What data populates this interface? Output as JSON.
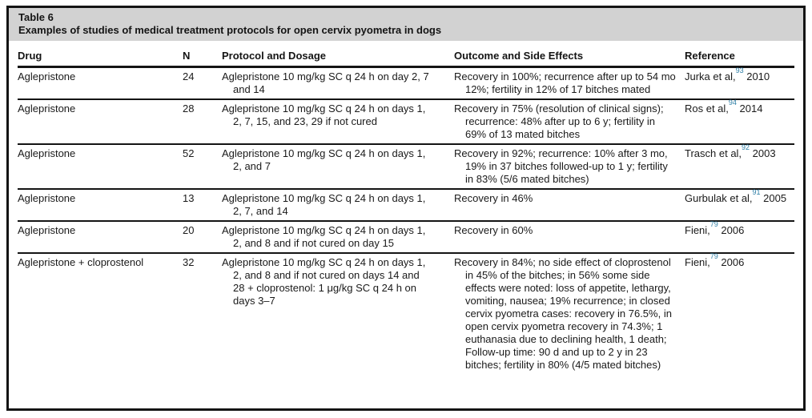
{
  "table": {
    "title_label": "Table 6",
    "title": "Examples of studies of medical treatment protocols for open cervix pyometra in dogs",
    "columns": {
      "drug": "Drug",
      "n": "N",
      "protocol": "Protocol and Dosage",
      "outcome": "Outcome and Side Effects",
      "reference": "Reference"
    },
    "rows": [
      {
        "drug": "Aglepristone",
        "n": "24",
        "protocol": "Aglepristone 10 mg/kg SC q 24 h on day 2, 7 and 14",
        "outcome": "Recovery in 100%; recurrence after up to 54 mo 12%; fertility in 12% of 17 bitches mated",
        "reference": {
          "pre": "Jurka et al,",
          "sup": "93",
          "post": " 2010"
        }
      },
      {
        "drug": "Aglepristone",
        "n": "28",
        "protocol": "Aglepristone 10 mg/kg SC q 24 h on days 1, 2, 7, 15, and 23, 29 if not cured",
        "outcome": "Recovery in 75% (resolution of clinical signs); recurrence: 48% after up to 6 y; fertility in 69% of 13 mated bitches",
        "reference": {
          "pre": "Ros et al,",
          "sup": "94",
          "post": " 2014"
        }
      },
      {
        "drug": "Aglepristone",
        "n": "52",
        "protocol": "Aglepristone 10 mg/kg SC q 24 h on days 1, 2, and 7",
        "outcome": "Recovery in 92%; recurrence: 10% after 3 mo, 19% in 37 bitches followed-up to 1 y; fertility in 83% (5/6 mated bitches)",
        "reference": {
          "pre": "Trasch et al,",
          "sup": "92",
          "post": " 2003"
        }
      },
      {
        "drug": "Aglepristone",
        "n": "13",
        "protocol": "Aglepristone 10 mg/kg SC q 24 h on days 1, 2, 7, and 14",
        "outcome": "Recovery in 46%",
        "reference": {
          "pre": "Gurbulak et al,",
          "sup": "91",
          "post": " 2005"
        }
      },
      {
        "drug": "Aglepristone",
        "n": "20",
        "protocol": "Aglepristone 10 mg/kg SC q 24 h on days 1, 2, and 8 and if not cured on day 15",
        "outcome": "Recovery in 60%",
        "reference": {
          "pre": "Fieni,",
          "sup": "79",
          "post": " 2006"
        }
      },
      {
        "drug": "Aglepristone + cloprostenol",
        "n": "32",
        "protocol": "Aglepristone 10 mg/kg SC q 24 h on days 1, 2, and 8 and if not cured on days 14 and 28 + cloprostenol: 1 μg/kg SC q 24 h on days 3–7",
        "outcome": "Recovery in 84%; no side effect of cloprostenol in 45% of the bitches; in 56% some side effects were noted: loss of appetite, lethargy, vomiting, nausea; 19% recurrence; in closed cervix pyometra cases: recovery in 76.5%, in open cervix pyometra recovery in 74.3%; 1 euthanasia due to declining health, 1 death; Follow-up time: 90 d and up to 2 y in 23 bitches; fertility in 80% (4/5 mated bitches)",
        "reference": {
          "pre": "Fieni,",
          "sup": "79",
          "post": " 2006"
        }
      }
    ],
    "colors": {
      "title_band": "#d2d2d2",
      "rule": "#141414",
      "citation_superscript": "#2f7fa6"
    }
  }
}
